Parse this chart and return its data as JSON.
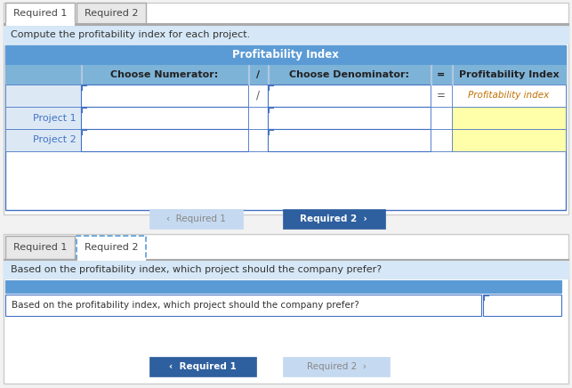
{
  "bg_color": "#f2f2f2",
  "white": "#ffffff",
  "tab_active_bg": "#ffffff",
  "tab_inactive_bg": "#e8e8e8",
  "tab_border": "#aaaaaa",
  "tab_text_color": "#444444",
  "tab_required1": "Required 1",
  "tab_required2": "Required 2",
  "section_bg": "#d6e8f7",
  "section1_text": "Compute the profitability index for each project.",
  "table_header_bg": "#5b9bd5",
  "table_subheader_bg": "#7eb3d8",
  "table_header_title": "Profitability Index",
  "col_numerator": "Choose Numerator:",
  "col_slash": "/",
  "col_denominator": "Choose Denominator:",
  "col_equals": "=",
  "col_pi": "Profitability Index",
  "row_label_bg": "#dce9f5",
  "row_label_text_color": "#4472c4",
  "row1_label": "Project 1",
  "row2_label": "Project 2",
  "yellow_cell_bg": "#ffffaa",
  "pi_text": "Profitability index",
  "pi_text_color": "#c07000",
  "border_blue": "#4472c4",
  "btn_inactive_bg": "#c5d9f0",
  "btn_inactive_text": "#888888",
  "btn_active_bg": "#2e5f9e",
  "btn_active_text": "#ffffff",
  "section2_text": "Based on the profitability index, which project should the company prefer?",
  "input2_header_bg": "#5b9bd5",
  "input2_text": "Based on the profitability index, which project should the company prefer?",
  "input2_text_color": "#333333",
  "tab2_active_border": "#5b9bd5",
  "divider_color": "#aaaaaa",
  "panel_border": "#cccccc"
}
